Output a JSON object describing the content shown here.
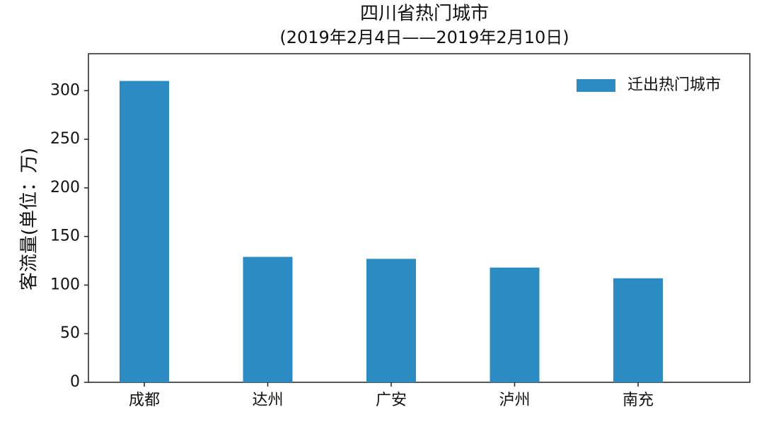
{
  "chart_data": {
    "type": "bar",
    "title": "四川省热门城市",
    "subtitle": "(2019年2月4日——2019年2月10日)",
    "y_label": "客流量(单位：万)",
    "categories": [
      "成都",
      "达州",
      "广安",
      "泸州",
      "南充"
    ],
    "series": [
      {
        "name": "迁出热门城市",
        "color": "#2b8cc4",
        "values": [
          310,
          129,
          127,
          118,
          107
        ]
      }
    ],
    "ylim": [
      0,
      338
    ],
    "yticks": [
      0,
      50,
      100,
      150,
      200,
      250,
      300
    ],
    "grid": false,
    "legend": "upper right"
  }
}
